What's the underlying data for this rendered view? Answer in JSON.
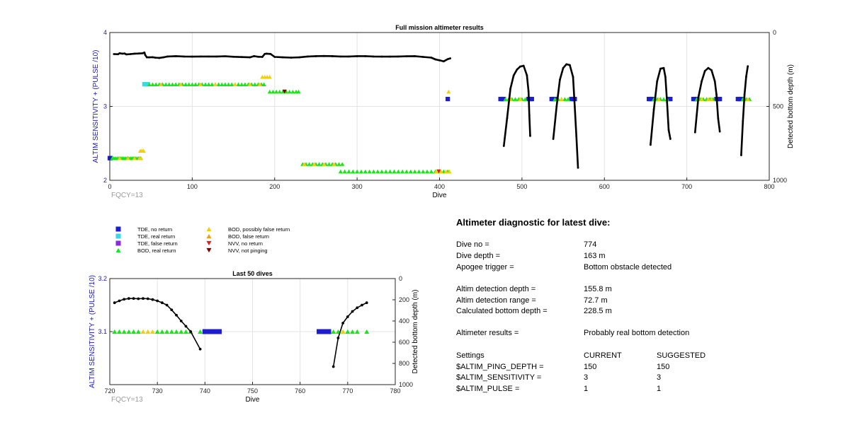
{
  "colors": {
    "tde_no_return": "#1c1cd0",
    "tde_real_return": "#3fd7e8",
    "tde_false_return": "#8a2be2",
    "bod_real_return": "#19e619",
    "bod_possibly_false": "#f2cf0c",
    "bod_false": "#f0a020",
    "nvv_no_return": "#e02020",
    "nvv_not_pinging": "#800000",
    "depth_line": "#000000",
    "axis_blue": "#1a1ab0"
  },
  "legend": [
    {
      "key": "tde_no_return",
      "label": "TDE, no return",
      "marker": "square"
    },
    {
      "key": "tde_real_return",
      "label": "TDE, real return",
      "marker": "square"
    },
    {
      "key": "tde_false_return",
      "label": "TDE, false return",
      "marker": "square"
    },
    {
      "key": "bod_real_return",
      "label": "BOD, real return",
      "marker": "triangle-up"
    },
    {
      "key": "bod_possibly_false",
      "label": "BOD, possibly false return",
      "marker": "triangle-up"
    },
    {
      "key": "bod_false",
      "label": "BOD, false return",
      "marker": "triangle-up"
    },
    {
      "key": "nvv_no_return",
      "label": "NVV, no return",
      "marker": "triangle-down"
    },
    {
      "key": "nvv_not_pinging",
      "label": "NVV, not pinging",
      "marker": "triangle-down"
    }
  ],
  "chart_data": [
    {
      "type": "scatter",
      "title": "Full mission altimeter results",
      "xlabel": "Dive",
      "ylabel": "ALTIM SENSITIVITY + (PULSE /10)",
      "y2label": "Detected bottom depth (m)",
      "annotation": "FQCY=13",
      "xlim": [
        0,
        800
      ],
      "xticks": [
        0,
        100,
        200,
        300,
        400,
        500,
        600,
        700,
        800
      ],
      "ylim": [
        2,
        4
      ],
      "yticks": [
        2,
        3,
        4
      ],
      "y2lim": [
        0,
        1000
      ],
      "y2ticks": [
        0,
        500,
        1000
      ],
      "y2_reversed": true,
      "grid": true,
      "marker_series": [
        {
          "key": "tde_no_return",
          "y": 3.1,
          "x": [
            410,
            474,
            476,
            478,
            508,
            510,
            512,
            536,
            538,
            540,
            560,
            562,
            564,
            654,
            656,
            658,
            678,
            680,
            708,
            710,
            712,
            736,
            738,
            740,
            762,
            764,
            766
          ]
        },
        {
          "key": "tde_real_return",
          "y": 3.3,
          "x": [
            42,
            44
          ]
        },
        {
          "key": "tde_no_return",
          "y": 2.3,
          "x": [
            0,
            1
          ]
        },
        {
          "key": "tde_real_return",
          "y": 3.3,
          "x": [
            46
          ]
        },
        {
          "key": "bod_real_return",
          "y": 2.3,
          "x": [
            3,
            5,
            7,
            9,
            11,
            13,
            15,
            17,
            19,
            21,
            23,
            25,
            27,
            29,
            31,
            33,
            35,
            37
          ]
        },
        {
          "key": "bod_possibly_false",
          "y": 2.3,
          "x": [
            12,
            22,
            30,
            36,
            38
          ]
        },
        {
          "key": "bod_possibly_false",
          "y": 2.4,
          "x": [
            37,
            39,
            41
          ]
        },
        {
          "key": "bod_real_return",
          "y": 3.3,
          "x": [
            48,
            52,
            56,
            60,
            64,
            68,
            72,
            76,
            80,
            84,
            88,
            92,
            96,
            100,
            104,
            108,
            112,
            116,
            120,
            124,
            128,
            132,
            136,
            140,
            144,
            148,
            152,
            156,
            160,
            164,
            168,
            172,
            176,
            180,
            184,
            187
          ]
        },
        {
          "key": "bod_possibly_false",
          "y": 3.3,
          "x": [
            62,
            86,
            110,
            128,
            152,
            170,
            182
          ]
        },
        {
          "key": "bod_possibly_false",
          "y": 3.4,
          "x": [
            185,
            188,
            191,
            194
          ]
        },
        {
          "key": "bod_real_return",
          "y": 3.2,
          "x": [
            194,
            198,
            202,
            206,
            210,
            214,
            218,
            222,
            226,
            229
          ]
        },
        {
          "key": "nvv_not_pinging",
          "y": 3.2,
          "x": [
            212
          ]
        },
        {
          "key": "bod_real_return",
          "y": 2.22,
          "x": [
            234,
            238,
            242,
            246,
            250,
            254,
            258,
            262,
            266,
            270,
            274,
            278,
            282
          ]
        },
        {
          "key": "bod_possibly_false",
          "y": 2.22,
          "x": [
            236,
            248,
            260,
            272
          ]
        },
        {
          "key": "bod_real_return",
          "y": 2.12,
          "x": [
            280,
            285,
            290,
            295,
            300,
            305,
            310,
            315,
            320,
            325,
            330,
            335,
            340,
            345,
            350,
            355,
            360,
            365,
            370,
            375,
            380,
            385,
            390,
            395,
            400,
            405,
            410
          ]
        },
        {
          "key": "bod_possibly_false",
          "y": 2.12,
          "x": [
            396,
            402,
            408,
            412
          ]
        },
        {
          "key": "nvv_no_return",
          "y": 2.12,
          "x": [
            399
          ]
        },
        {
          "key": "bod_possibly_false",
          "y": 3.2,
          "x": [
            411
          ]
        },
        {
          "key": "bod_real_return",
          "y": 3.1,
          "x": [
            480,
            484,
            488,
            492,
            496,
            500,
            504,
            540,
            544,
            548,
            552,
            556,
            660,
            664,
            668,
            672,
            676,
            712,
            716,
            720,
            724,
            728,
            732,
            768,
            772,
            776
          ]
        },
        {
          "key": "bod_possibly_false",
          "y": 3.1,
          "x": [
            486,
            498,
            548,
            666,
            718,
            726,
            730,
            774
          ]
        }
      ],
      "depth_series": [
        {
          "name": "mission-start",
          "points": [
            [
              5,
              146
            ],
            [
              10,
              147
            ],
            [
              12,
              140
            ],
            [
              15,
              143
            ],
            [
              18,
              142
            ],
            [
              20,
              148
            ],
            [
              25,
              146
            ],
            [
              30,
              143
            ],
            [
              35,
              142
            ],
            [
              40,
              140
            ],
            [
              42,
              135
            ],
            [
              43,
              152
            ],
            [
              45,
              168
            ],
            [
              48,
              168
            ],
            [
              52,
              167
            ],
            [
              55,
              170
            ],
            [
              60,
              172
            ],
            [
              65,
              168
            ],
            [
              70,
              162
            ],
            [
              80,
              160
            ],
            [
              90,
              162
            ],
            [
              100,
              163
            ],
            [
              110,
              162
            ],
            [
              120,
              162
            ],
            [
              130,
              162
            ],
            [
              140,
              161
            ],
            [
              150,
              164
            ],
            [
              160,
              166
            ],
            [
              170,
              168
            ],
            [
              175,
              160
            ],
            [
              180,
              164
            ],
            [
              185,
              165
            ],
            [
              188,
              145
            ],
            [
              190,
              143
            ],
            [
              195,
              145
            ],
            [
              200,
              165
            ],
            [
              210,
              168
            ],
            [
              220,
              170
            ],
            [
              230,
              168
            ],
            [
              240,
              162
            ],
            [
              250,
              160
            ],
            [
              260,
              159
            ],
            [
              270,
              160
            ],
            [
              280,
              162
            ],
            [
              290,
              162
            ],
            [
              300,
              160
            ],
            [
              310,
              160
            ],
            [
              320,
              162
            ],
            [
              330,
              163
            ],
            [
              340,
              163
            ],
            [
              350,
              162
            ],
            [
              360,
              161
            ],
            [
              370,
              160
            ],
            [
              380,
              165
            ],
            [
              390,
              170
            ],
            [
              395,
              182
            ],
            [
              400,
              188
            ],
            [
              405,
              195
            ],
            [
              410,
              180
            ],
            [
              413,
              175
            ]
          ]
        },
        {
          "name": "dives-478-510",
          "points": [
            [
              478,
              768
            ],
            [
              482,
              580
            ],
            [
              486,
              380
            ],
            [
              490,
              290
            ],
            [
              494,
              250
            ],
            [
              498,
              230
            ],
            [
              502,
              225
            ],
            [
              506,
              290
            ],
            [
              508,
              400
            ],
            [
              509,
              560
            ],
            [
              510,
              700
            ]
          ]
        },
        {
          "name": "dives-538-564",
          "points": [
            [
              538,
              720
            ],
            [
              542,
              500
            ],
            [
              546,
              320
            ],
            [
              550,
              240
            ],
            [
              554,
              215
            ],
            [
              558,
              220
            ],
            [
              562,
              300
            ],
            [
              564,
              500
            ],
            [
              566,
              700
            ],
            [
              568,
              915
            ]
          ]
        },
        {
          "name": "dives-654-680",
          "points": [
            [
              656,
              760
            ],
            [
              660,
              520
            ],
            [
              664,
              330
            ],
            [
              668,
              245
            ],
            [
              672,
              240
            ],
            [
              674,
              300
            ],
            [
              676,
              470
            ],
            [
              678,
              660
            ],
            [
              680,
              720
            ]
          ]
        },
        {
          "name": "dives-708-740",
          "points": [
            [
              710,
              675
            ],
            [
              714,
              440
            ],
            [
              718,
              330
            ],
            [
              722,
              260
            ],
            [
              726,
              240
            ],
            [
              730,
              255
            ],
            [
              734,
              330
            ],
            [
              736,
              420
            ],
            [
              738,
              580
            ],
            [
              740,
              670
            ]
          ]
        },
        {
          "name": "dives-766-774",
          "points": [
            [
              766,
              830
            ],
            [
              768,
              600
            ],
            [
              770,
              420
            ],
            [
              772,
              300
            ],
            [
              774,
              228
            ]
          ]
        }
      ]
    },
    {
      "type": "scatter",
      "title": "Last 50 dives",
      "xlabel": "Dive",
      "ylabel": "ALTIM SENSITIVITY + (PULSE /10)",
      "y2label": "Detected bottom depth (m)",
      "annotation": "FQCY=13",
      "xlim": [
        720,
        780
      ],
      "xticks": [
        720,
        730,
        740,
        750,
        760,
        770,
        780
      ],
      "ylim": [
        3.0,
        3.2
      ],
      "yticks": [
        3.1,
        3.2
      ],
      "y2lim": [
        0,
        1000
      ],
      "y2ticks": [
        0,
        200,
        400,
        600,
        800,
        1000
      ],
      "y2_reversed": true,
      "grid": true,
      "marker_series": [
        {
          "key": "bod_real_return",
          "y": 3.1,
          "x": [
            721,
            722,
            723,
            724,
            725,
            726,
            730,
            731,
            732,
            733,
            734,
            735,
            736,
            737,
            739,
            767,
            768,
            769,
            770,
            771,
            772,
            774
          ]
        },
        {
          "key": "bod_possibly_false",
          "y": 3.1,
          "x": [
            727,
            728,
            729,
            740,
            766,
            769
          ]
        },
        {
          "key": "tde_no_return",
          "y": 3.1,
          "x": [
            740,
            741,
            742,
            743,
            764,
            765,
            766
          ]
        }
      ],
      "depth_series": [
        {
          "name": "dives-721-739",
          "points": [
            [
              721,
              228
            ],
            [
              722,
              210
            ],
            [
              723,
              195
            ],
            [
              724,
              188
            ],
            [
              725,
              188
            ],
            [
              726,
              190
            ],
            [
              727,
              188
            ],
            [
              728,
              190
            ],
            [
              729,
              198
            ],
            [
              730,
              210
            ],
            [
              731,
              228
            ],
            [
              732,
              250
            ],
            [
              733,
              295
            ],
            [
              734,
              345
            ],
            [
              735,
              400
            ],
            [
              736,
              450
            ],
            [
              737,
              500
            ],
            [
              739,
              665
            ]
          ]
        },
        {
          "name": "dives-767-774",
          "points": [
            [
              767,
              830
            ],
            [
              768,
              560
            ],
            [
              769,
              420
            ],
            [
              770,
              360
            ],
            [
              771,
              310
            ],
            [
              772,
              275
            ],
            [
              773,
              250
            ],
            [
              774,
              228
            ]
          ]
        }
      ]
    }
  ],
  "diagnostic": {
    "title": "Altimeter diagnostic for latest dive:",
    "rows": [
      {
        "label": "Dive no =",
        "value": "774"
      },
      {
        "label": "Dive depth =",
        "value": "163 m"
      },
      {
        "label": "Apogee trigger =",
        "value": "Bottom obstacle detected"
      },
      {
        "label": "Altim detection depth =",
        "value": "155.8 m"
      },
      {
        "label": "Altim detection range =",
        "value": "72.7 m"
      },
      {
        "label": "Calculated bottom depth =",
        "value": "228.5 m"
      },
      {
        "label": "Altimeter results =",
        "value": "Probably real bottom detection"
      }
    ],
    "settings_header": {
      "label": "Settings",
      "current": "CURRENT",
      "suggested": "SUGGESTED"
    },
    "settings": [
      {
        "name": "$ALTIM_PING_DEPTH =",
        "current": "150",
        "suggested": "150"
      },
      {
        "name": "$ALTIM_SENSITIVITY =",
        "current": "3",
        "suggested": "3"
      },
      {
        "name": "$ALTIM_PULSE =",
        "current": "1",
        "suggested": "1"
      }
    ]
  }
}
